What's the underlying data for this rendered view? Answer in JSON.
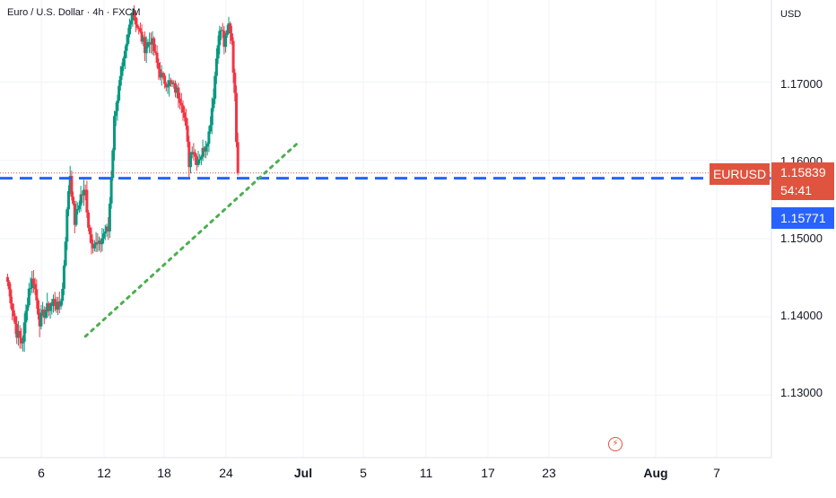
{
  "header": {
    "title": "Euro / U.S. Dollar · 4h · FXCM",
    "currency": "USD"
  },
  "price_axis": {
    "ticks": [
      "1.17000",
      "1.16000",
      "1.15000",
      "1.14000",
      "1.13000"
    ]
  },
  "time_axis": {
    "ticks": [
      {
        "label": "6",
        "bold": false
      },
      {
        "label": "12",
        "bold": false
      },
      {
        "label": "18",
        "bold": false
      },
      {
        "label": "24",
        "bold": false
      },
      {
        "label": "Jul",
        "bold": true
      },
      {
        "label": "5",
        "bold": false
      },
      {
        "label": "11",
        "bold": false
      },
      {
        "label": "17",
        "bold": false
      },
      {
        "label": "23",
        "bold": false
      },
      {
        "label": "Aug",
        "bold": true
      },
      {
        "label": "7",
        "bold": false
      }
    ]
  },
  "tags": {
    "symbol": "EURUSD",
    "last_price": "1.15839",
    "countdown": "54:41",
    "level_price": "1.15771"
  },
  "colors": {
    "up": "#089981",
    "down": "#f23645",
    "level_line": "#2962ff",
    "trend_line": "#4caf50",
    "tag_red": "#e0533f"
  },
  "chart_data": {
    "type": "candlestick",
    "title": "Euro / U.S. Dollar · 4h · FXCM",
    "ylim": [
      1.122,
      1.1805
    ],
    "grid": true,
    "horizontal_level": 1.15771,
    "last_price": 1.15839,
    "trendline": {
      "from": [
        8.5,
        1.1375
      ],
      "to": [
        31.6,
        1.1621
      ]
    },
    "anchors": [
      [
        0.0,
        1.1445
      ],
      [
        1.0,
        1.138
      ],
      [
        1.6,
        1.1365
      ],
      [
        2.3,
        1.1435
      ],
      [
        2.8,
        1.145
      ],
      [
        3.5,
        1.1395
      ],
      [
        4.0,
        1.1405
      ],
      [
        5.0,
        1.142
      ],
      [
        5.6,
        1.141
      ],
      [
        6.0,
        1.1435
      ],
      [
        6.4,
        1.1515
      ],
      [
        6.8,
        1.1587
      ],
      [
        7.3,
        1.152
      ],
      [
        8.0,
        1.1555
      ],
      [
        8.5,
        1.156
      ],
      [
        8.9,
        1.151
      ],
      [
        9.3,
        1.1495
      ],
      [
        10.0,
        1.149
      ],
      [
        10.6,
        1.151
      ],
      [
        11.0,
        1.151
      ],
      [
        11.7,
        1.166
      ],
      [
        12.3,
        1.17
      ],
      [
        13.0,
        1.1745
      ],
      [
        13.6,
        1.1795
      ],
      [
        14.2,
        1.177
      ],
      [
        15.0,
        1.1745
      ],
      [
        15.7,
        1.1755
      ],
      [
        16.4,
        1.172
      ],
      [
        17.0,
        1.1702
      ],
      [
        17.6,
        1.17
      ],
      [
        18.4,
        1.169
      ],
      [
        19.1,
        1.1675
      ],
      [
        19.6,
        1.163
      ],
      [
        19.8,
        1.1595
      ],
      [
        20.2,
        1.162
      ],
      [
        20.6,
        1.16
      ],
      [
        21.3,
        1.161
      ],
      [
        22.0,
        1.1635
      ],
      [
        22.5,
        1.1685
      ],
      [
        23.0,
        1.1755
      ],
      [
        23.4,
        1.177
      ],
      [
        23.7,
        1.1745
      ],
      [
        24.2,
        1.1775
      ],
      [
        24.5,
        1.1755
      ],
      [
        24.8,
        1.169
      ],
      [
        25.0,
        1.163
      ],
      [
        25.2,
        1.1584
      ]
    ]
  }
}
